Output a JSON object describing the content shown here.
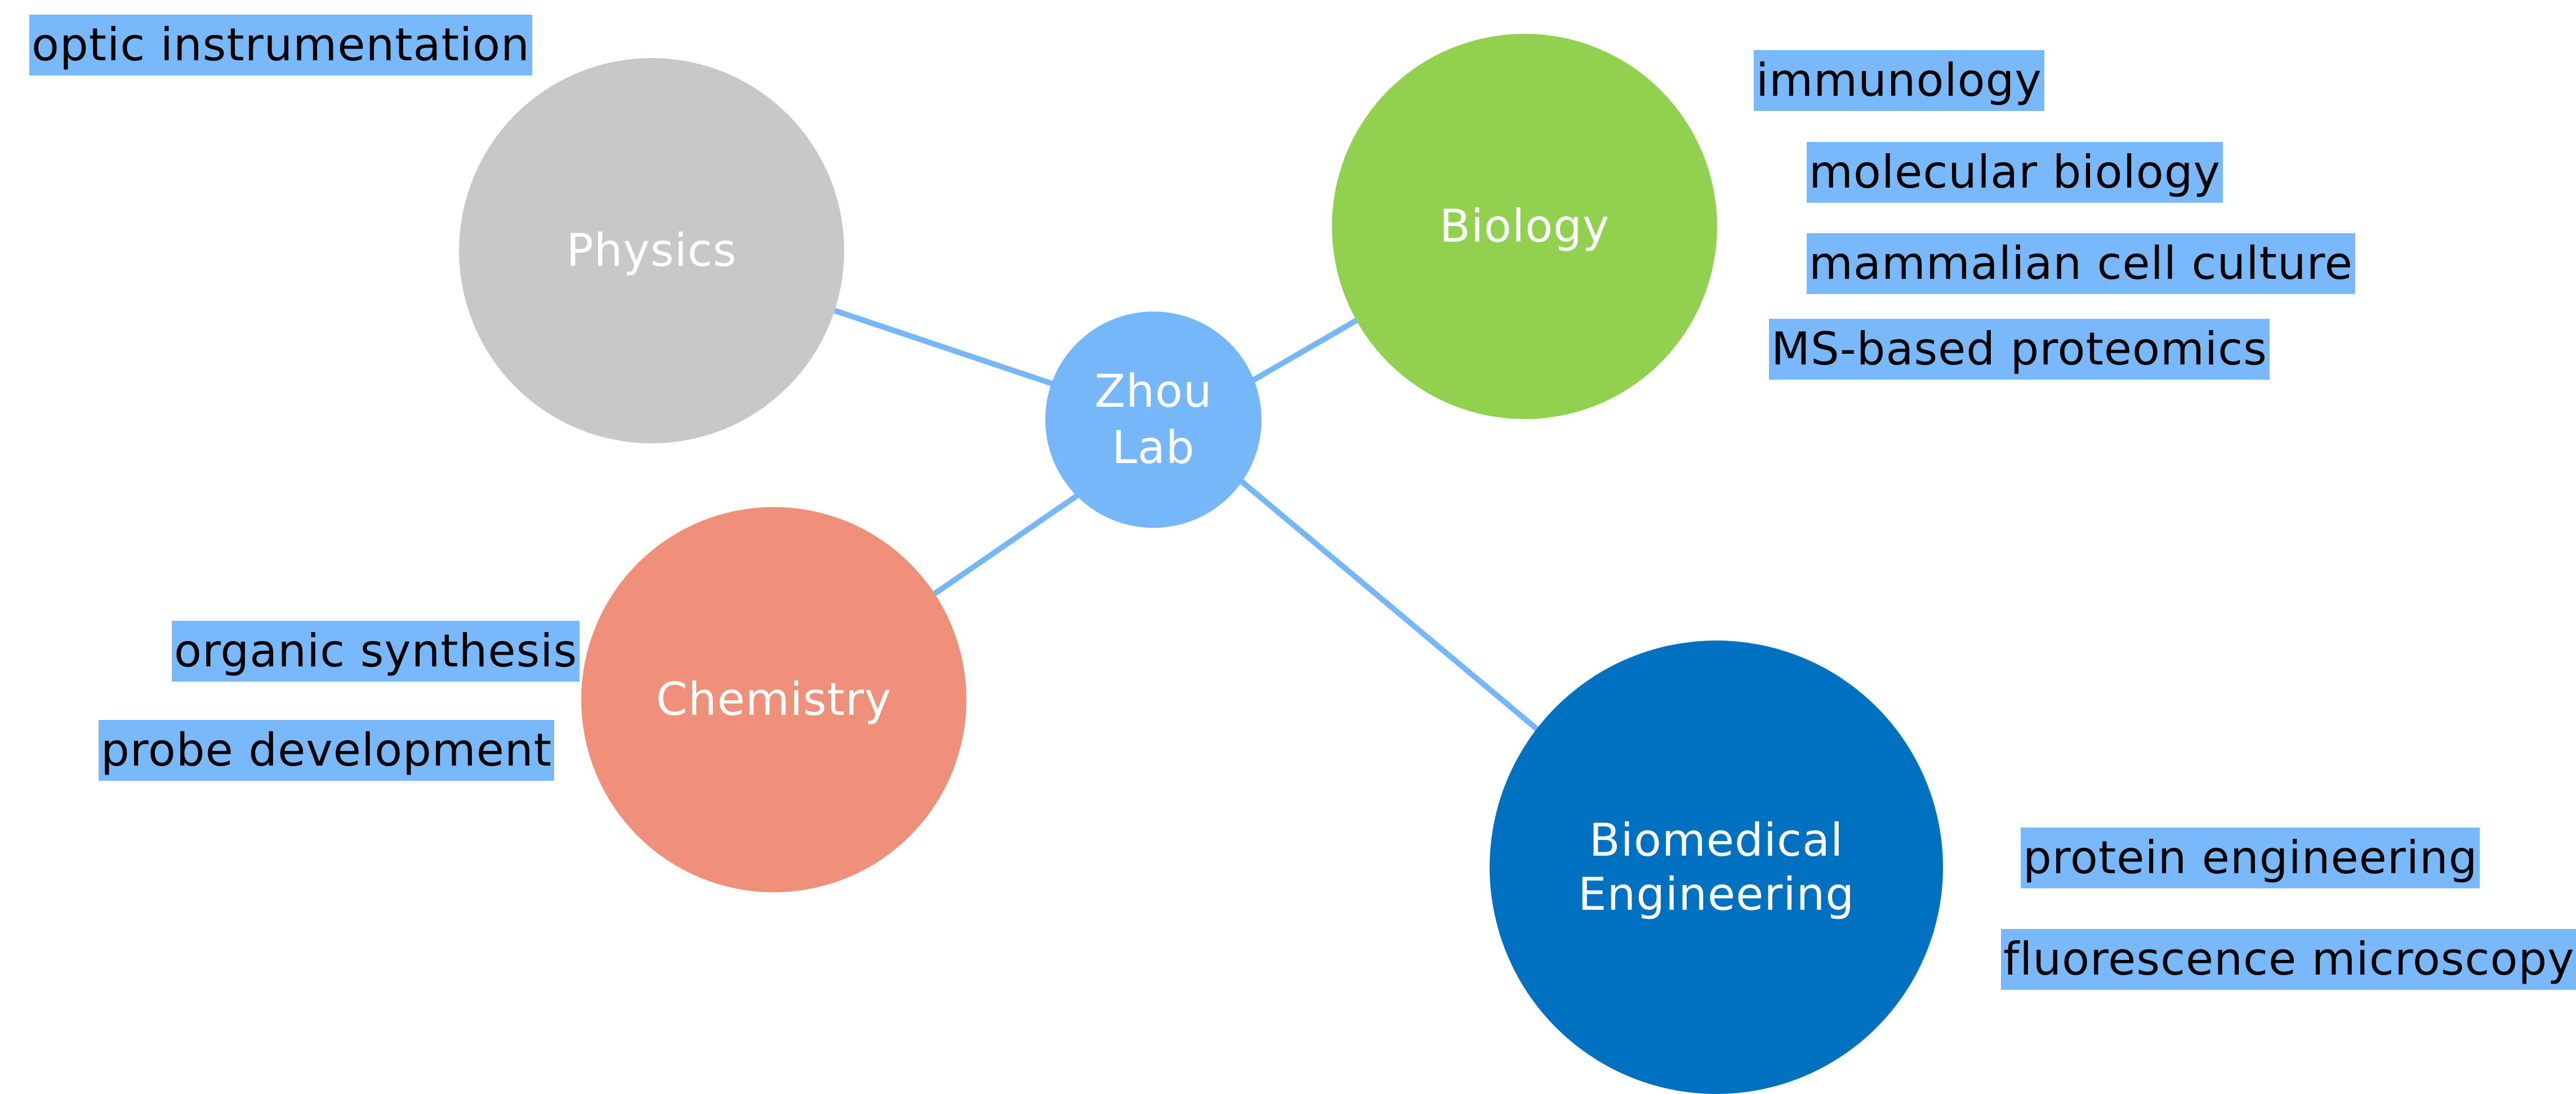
{
  "center": {
    "label_line1": "Zhou",
    "label_line2": "Lab",
    "color": "#76b7fa"
  },
  "nodes": {
    "physics": {
      "label": "Physics",
      "color": "#c8c8c8"
    },
    "biology": {
      "label": "Biology",
      "color": "#92d050"
    },
    "chemistry": {
      "label": "Chemistry",
      "color": "#ef907a"
    },
    "biomedical": {
      "label_line1": "Biomedical",
      "label_line2": "Engineering",
      "color": "#0070c0"
    }
  },
  "link_color": "#76b7fa",
  "tags": {
    "physics": [
      "optic instrumentation"
    ],
    "biology": [
      "immunology",
      "molecular biology",
      "mammalian cell culture",
      "MS-based proteomics"
    ],
    "chemistry": [
      "organic synthesis",
      "probe development"
    ],
    "biomedical": [
      "protein engineering",
      "fluorescence microscopy"
    ]
  },
  "tag_color": "#79b8fb"
}
